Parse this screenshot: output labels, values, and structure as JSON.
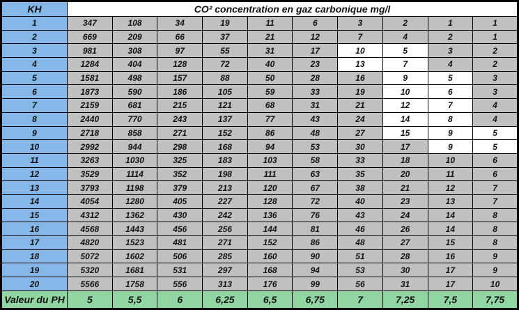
{
  "title": "CO² concentration en gaz carbonique mg/l",
  "header": {
    "kh_label": "KH"
  },
  "footer": {
    "label": "Valeur du PH",
    "ph_values": [
      "5",
      "5,5",
      "6",
      "6,25",
      "6,5",
      "6,75",
      "7",
      "7,25",
      "7,5",
      "7,75"
    ]
  },
  "colors": {
    "kh_blue": "#85B8E8",
    "cell_gray": "#C0C0C0",
    "ph_green": "#90D5A2",
    "highlight_white": "#FFFFFF",
    "border_black": "#000000"
  },
  "rows": [
    {
      "kh": "1",
      "values": [
        "347",
        "108",
        "34",
        "19",
        "11",
        "6",
        "3",
        "2",
        "1",
        "1"
      ],
      "white_cols": []
    },
    {
      "kh": "2",
      "values": [
        "669",
        "209",
        "66",
        "37",
        "21",
        "12",
        "7",
        "4",
        "2",
        "1"
      ],
      "white_cols": []
    },
    {
      "kh": "3",
      "values": [
        "981",
        "308",
        "97",
        "55",
        "31",
        "17",
        "10",
        "5",
        "3",
        "2"
      ],
      "white_cols": [
        6,
        7
      ]
    },
    {
      "kh": "4",
      "values": [
        "1284",
        "404",
        "128",
        "72",
        "40",
        "23",
        "13",
        "7",
        "4",
        "2"
      ],
      "white_cols": [
        6,
        7
      ]
    },
    {
      "kh": "5",
      "values": [
        "1581",
        "498",
        "157",
        "88",
        "50",
        "28",
        "16",
        "9",
        "5",
        "3"
      ],
      "white_cols": [
        7,
        8
      ]
    },
    {
      "kh": "6",
      "values": [
        "1873",
        "590",
        "186",
        "105",
        "59",
        "33",
        "19",
        "10",
        "6",
        "3"
      ],
      "white_cols": [
        7,
        8
      ]
    },
    {
      "kh": "7",
      "values": [
        "2159",
        "681",
        "215",
        "121",
        "68",
        "31",
        "21",
        "12",
        "7",
        "4"
      ],
      "white_cols": [
        7,
        8
      ]
    },
    {
      "kh": "8",
      "values": [
        "2440",
        "770",
        "243",
        "137",
        "77",
        "43",
        "24",
        "14",
        "8",
        "4"
      ],
      "white_cols": [
        7,
        8
      ]
    },
    {
      "kh": "9",
      "values": [
        "2718",
        "858",
        "271",
        "152",
        "86",
        "48",
        "27",
        "15",
        "9",
        "5"
      ],
      "white_cols": [
        7,
        8,
        9
      ]
    },
    {
      "kh": "10",
      "values": [
        "2992",
        "944",
        "298",
        "168",
        "94",
        "53",
        "30",
        "17",
        "9",
        "5"
      ],
      "white_cols": [
        8,
        9
      ]
    },
    {
      "kh": "11",
      "values": [
        "3263",
        "1030",
        "325",
        "183",
        "103",
        "58",
        "33",
        "18",
        "10",
        "6"
      ],
      "white_cols": []
    },
    {
      "kh": "12",
      "values": [
        "3529",
        "1114",
        "352",
        "198",
        "111",
        "63",
        "35",
        "20",
        "11",
        "6"
      ],
      "white_cols": []
    },
    {
      "kh": "13",
      "values": [
        "3793",
        "1198",
        "379",
        "213",
        "120",
        "67",
        "38",
        "21",
        "12",
        "7"
      ],
      "white_cols": []
    },
    {
      "kh": "14",
      "values": [
        "4054",
        "1280",
        "405",
        "227",
        "128",
        "72",
        "40",
        "23",
        "13",
        "7"
      ],
      "white_cols": []
    },
    {
      "kh": "15",
      "values": [
        "4312",
        "1362",
        "430",
        "242",
        "136",
        "76",
        "43",
        "24",
        "14",
        "8"
      ],
      "white_cols": []
    },
    {
      "kh": "16",
      "values": [
        "4568",
        "1443",
        "456",
        "256",
        "144",
        "81",
        "46",
        "26",
        "14",
        "8"
      ],
      "white_cols": []
    },
    {
      "kh": "17",
      "values": [
        "4820",
        "1523",
        "481",
        "271",
        "152",
        "86",
        "48",
        "27",
        "15",
        "8"
      ],
      "white_cols": []
    },
    {
      "kh": "18",
      "values": [
        "5072",
        "1602",
        "506",
        "285",
        "160",
        "90",
        "51",
        "28",
        "16",
        "9"
      ],
      "white_cols": []
    },
    {
      "kh": "19",
      "values": [
        "5320",
        "1681",
        "531",
        "297",
        "168",
        "94",
        "53",
        "30",
        "17",
        "9"
      ],
      "white_cols": []
    },
    {
      "kh": "20",
      "values": [
        "5566",
        "1758",
        "556",
        "313",
        "176",
        "99",
        "56",
        "31",
        "17",
        "10"
      ],
      "white_cols": []
    }
  ]
}
